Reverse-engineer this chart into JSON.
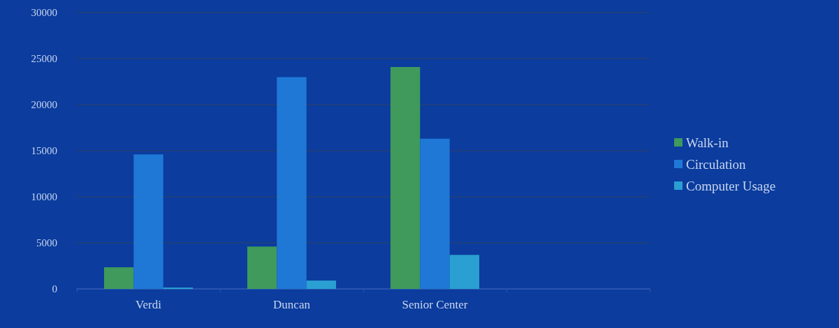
{
  "chart_data": {
    "type": "bar",
    "categories": [
      "Verdi",
      "Duncan",
      "Senior Center",
      null
    ],
    "series": [
      {
        "name": "Walk-in",
        "color": "#3f9a5c",
        "values": [
          2350,
          4600,
          24100,
          null
        ]
      },
      {
        "name": "Circulation",
        "color": "#1f78d6",
        "values": [
          14600,
          23000,
          16300,
          null
        ]
      },
      {
        "name": "Computer Usage",
        "color": "#2a9fd2",
        "values": [
          150,
          900,
          3700,
          null
        ]
      }
    ],
    "ylim": [
      0,
      30000
    ],
    "yticks": [
      0,
      5000,
      10000,
      15000,
      20000,
      25000,
      30000
    ],
    "grid": "y",
    "legend": "right"
  }
}
